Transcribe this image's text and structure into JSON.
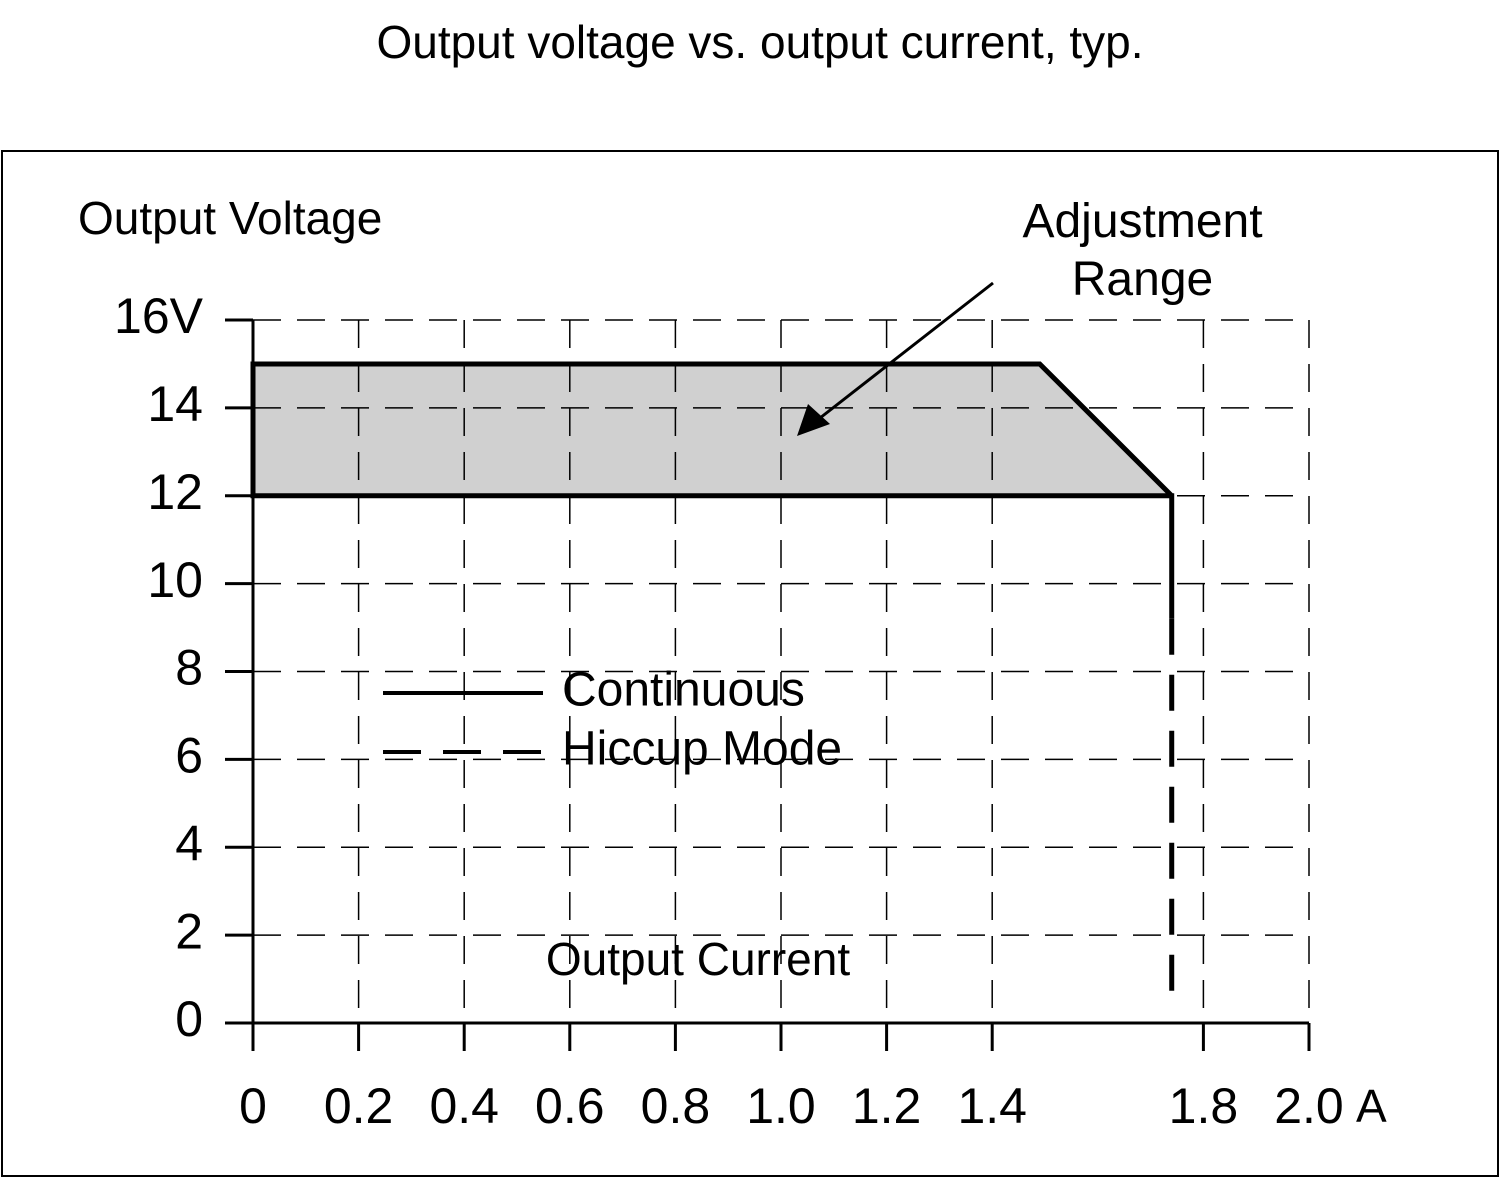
{
  "chart_data": {
    "type": "line",
    "title": "Output voltage vs. output current, typ.",
    "x_label": "Output Current",
    "y_label": "Output Voltage",
    "x_unit": "A",
    "xlim": [
      0,
      2.0
    ],
    "ylim": [
      0,
      16
    ],
    "xticks": [
      0,
      0.2,
      0.4,
      0.6,
      0.8,
      {
        "value": 1.0,
        "label": "1.0"
      },
      1.2,
      1.4,
      1.8,
      {
        "value": 2.0,
        "label": "2.0"
      }
    ],
    "yticks": [
      0,
      2,
      4,
      6,
      8,
      10,
      12,
      14,
      {
        "value": 16,
        "label": "16V"
      }
    ],
    "grid": true,
    "series": [
      {
        "name": "Continuous",
        "color": "#000000",
        "dash": false,
        "x": [
          1.74,
          1.74,
          0,
          0,
          1.49,
          1.74
        ],
        "values": [
          9.2,
          12,
          12,
          15,
          15,
          12
        ]
      },
      {
        "name": "Hiccup Mode",
        "color": "#000000",
        "dash": true,
        "x": [
          1.74,
          1.74
        ],
        "values": [
          9.2,
          0.5
        ]
      }
    ],
    "area": {
      "label": "Adjustment Range",
      "color": "#d0d0d0",
      "x": [
        0,
        1.49,
        1.74
      ],
      "upper": [
        15,
        15,
        12
      ],
      "lower": [
        12,
        12,
        12
      ]
    }
  }
}
